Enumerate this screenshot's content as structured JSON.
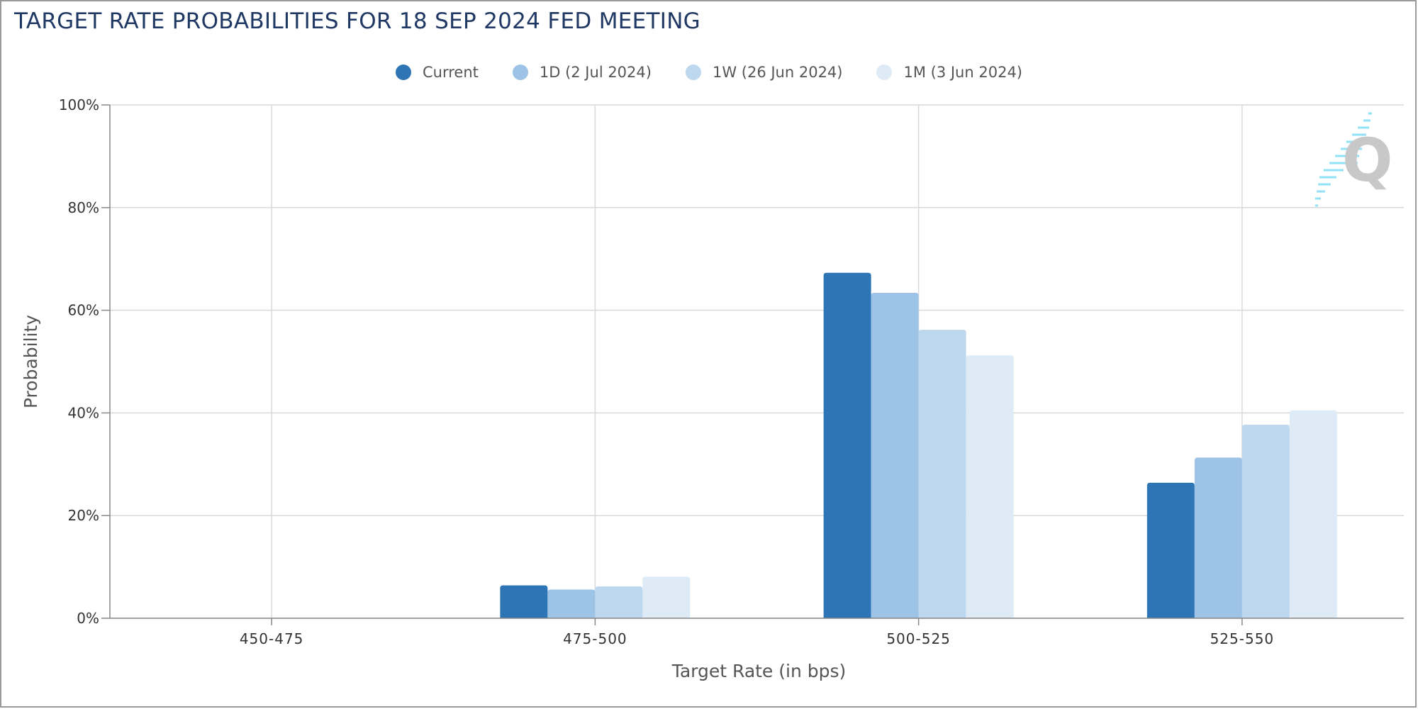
{
  "title": "TARGET RATE PROBABILITIES FOR 18 SEP 2024 FED MEETING",
  "logo_icon": "q-logo-icon",
  "chart_data": {
    "type": "bar",
    "title": "TARGET RATE PROBABILITIES FOR 18 SEP 2024 FED MEETING",
    "xlabel": "Target Rate (in bps)",
    "ylabel": "Probability",
    "categories": [
      "450-475",
      "475-500",
      "500-525",
      "525-550"
    ],
    "ylim": [
      0,
      100
    ],
    "yticks": [
      "0%",
      "20%",
      "40%",
      "60%",
      "80%",
      "100%"
    ],
    "yunit": "%",
    "grid": true,
    "legend_position": "top-center",
    "series": [
      {
        "name": "Current",
        "color": "#2e75b6",
        "values": [
          0,
          6.4,
          67.3,
          26.4
        ]
      },
      {
        "name": "1D (2 Jul 2024)",
        "color": "#9dc3e6",
        "values": [
          0,
          5.6,
          63.4,
          31.3
        ]
      },
      {
        "name": "1W (26 Jun 2024)",
        "color": "#bdd7ee",
        "values": [
          0,
          6.2,
          56.2,
          37.7
        ]
      },
      {
        "name": "1M (3 Jun 2024)",
        "color": "#deebf7",
        "values": [
          0,
          8.1,
          51.2,
          40.5
        ]
      }
    ]
  }
}
